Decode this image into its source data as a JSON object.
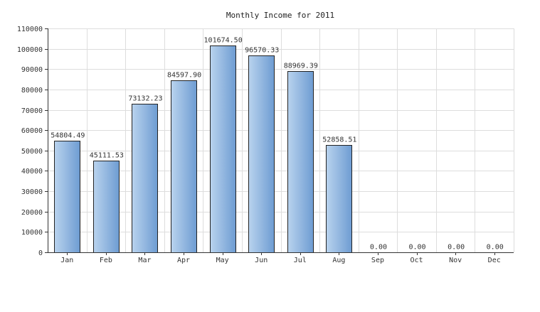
{
  "chart_data": {
    "type": "bar",
    "title": "Monthly Income for 2011",
    "xlabel": "",
    "ylabel": "",
    "categories": [
      "Jan",
      "Feb",
      "Mar",
      "Apr",
      "May",
      "Jun",
      "Jul",
      "Aug",
      "Sep",
      "Oct",
      "Nov",
      "Dec"
    ],
    "values": [
      54804.49,
      45111.53,
      73132.23,
      84597.9,
      101674.5,
      96570.33,
      88969.39,
      52858.51,
      0.0,
      0.0,
      0.0,
      0.0
    ],
    "value_labels": [
      "54804.49",
      "45111.53",
      "73132.23",
      "84597.90",
      "101674.50",
      "96570.33",
      "88969.39",
      "52858.51",
      "0.00",
      "0.00",
      "0.00",
      "0.00"
    ],
    "ylim": [
      0,
      110000
    ],
    "yticks": [
      0,
      10000,
      20000,
      30000,
      40000,
      50000,
      60000,
      70000,
      80000,
      90000,
      100000,
      110000
    ],
    "ytick_labels": [
      "0",
      "10000",
      "20000",
      "30000",
      "40000",
      "50000",
      "60000",
      "70000",
      "80000",
      "90000",
      "100000",
      "110000"
    ],
    "grid": true,
    "legend": "none",
    "bar_color_light": "#b9d3ee",
    "bar_color_dark": "#6e9cd2"
  }
}
